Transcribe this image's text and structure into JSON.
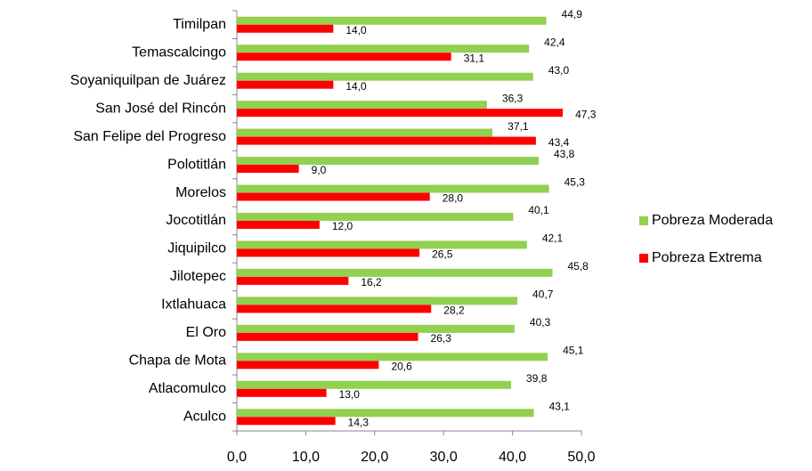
{
  "chart_data": {
    "type": "bar",
    "orientation": "horizontal",
    "categories": [
      "Timilpan",
      "Temascalcingo",
      "Soyaniquilpan de Juárez",
      "San José del Rincón",
      "San Felipe del Progreso",
      "Polotitlán",
      "Morelos",
      "Jocotitlán",
      "Jiquipilco",
      "Jilotepec",
      "Ixtlahuaca",
      "El Oro",
      "Chapa de Mota",
      "Atlacomulco",
      "Aculco"
    ],
    "series": [
      {
        "name": "Pobreza Moderada",
        "color": "#92d050",
        "values": [
          44.9,
          42.4,
          43.0,
          36.3,
          37.1,
          43.8,
          45.3,
          40.1,
          42.1,
          45.8,
          40.7,
          40.3,
          45.1,
          39.8,
          43.1
        ],
        "value_labels": [
          "44,9",
          "42,4",
          "43,0",
          "36,3",
          "37,1",
          "43,8",
          "45,3",
          "40,1",
          "42,1",
          "45,8",
          "40,7",
          "40,3",
          "45,1",
          "39,8",
          "43,1"
        ]
      },
      {
        "name": "Pobreza Extrema",
        "color": "#ff0000",
        "values": [
          14.0,
          31.1,
          14.0,
          47.3,
          43.4,
          9.0,
          28.0,
          12.0,
          26.5,
          16.2,
          28.2,
          26.3,
          20.6,
          13.0,
          14.3
        ],
        "value_labels": [
          "14,0",
          "31,1",
          "14,0",
          "47,3",
          "43,4",
          "9,0",
          "28,0",
          "12,0",
          "26,5",
          "16,2",
          "28,2",
          "26,3",
          "20,6",
          "13,0",
          "14,3"
        ]
      }
    ],
    "xlim": [
      0,
      50
    ],
    "xticks": [
      {
        "value": 0,
        "label": "0,0"
      },
      {
        "value": 10,
        "label": "10,0"
      },
      {
        "value": 20,
        "label": "20,0"
      },
      {
        "value": 30,
        "label": "30,0"
      },
      {
        "value": 40,
        "label": "40,0"
      },
      {
        "value": 50,
        "label": "50,0"
      }
    ],
    "legend": "right",
    "grid": false
  }
}
